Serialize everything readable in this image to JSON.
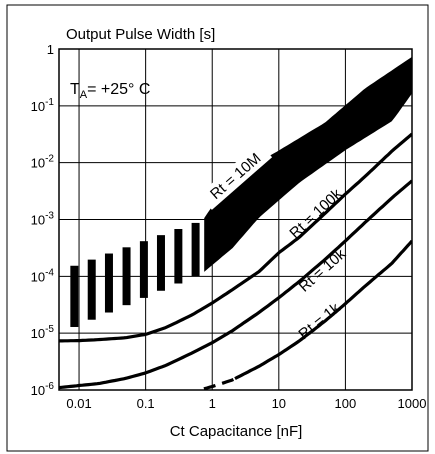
{
  "chart_data": {
    "type": "line",
    "title": "",
    "ylabel": "Output Pulse Width [s]",
    "xlabel": "Ct Capacitance [nF]",
    "x_scale": "log",
    "y_scale": "log",
    "xlim": [
      0.005,
      1000
    ],
    "ylim": [
      1e-06,
      1
    ],
    "x_ticks": [
      {
        "value": 0.01,
        "label": "0.01"
      },
      {
        "value": 0.1,
        "label": "0.1"
      },
      {
        "value": 1,
        "label": "1"
      },
      {
        "value": 10,
        "label": "10"
      },
      {
        "value": 100,
        "label": "100"
      },
      {
        "value": 1000,
        "label": "1000"
      }
    ],
    "y_ticks": [
      {
        "value": 1,
        "base": "1",
        "exp": ""
      },
      {
        "value": 0.1,
        "base": "10",
        "exp": "-1"
      },
      {
        "value": 0.01,
        "base": "10",
        "exp": "-2"
      },
      {
        "value": 0.001,
        "base": "10",
        "exp": "-3"
      },
      {
        "value": 0.0001,
        "base": "10",
        "exp": "-4"
      },
      {
        "value": 1e-05,
        "base": "10",
        "exp": "-5"
      },
      {
        "value": 1e-06,
        "base": "10",
        "exp": "-6"
      }
    ],
    "condition": {
      "prefix": "T",
      "subscript": "A",
      "text": "= +25° C"
    },
    "grid": true,
    "series": [
      {
        "name": "Rt = 10M",
        "style": "band",
        "upper": [
          [
            0.77,
            0.00105
          ],
          [
            2,
            0.0055
          ],
          [
            10,
            0.016
          ],
          [
            50,
            0.05
          ],
          [
            200,
            0.2
          ],
          [
            1000,
            0.71
          ]
        ],
        "lower": [
          [
            0.77,
            0.000125
          ],
          [
            2,
            0.00032
          ],
          [
            5,
            0.0011
          ],
          [
            20,
            0.0045
          ],
          [
            100,
            0.017
          ],
          [
            500,
            0.055
          ],
          [
            1000,
            0.17
          ]
        ],
        "label_at": [
          2.5,
          0.005
        ]
      },
      {
        "name": "",
        "style": "hatched",
        "upper": [
          [
            0.007,
            0.00015
          ],
          [
            0.77,
            0.00105
          ]
        ],
        "lower": [
          [
            0.007,
            1.25e-05
          ],
          [
            0.77,
            0.000125
          ]
        ],
        "bar_x": [
          0.0074,
          0.0135,
          0.0245,
          0.045,
          0.082,
          0.148,
          0.27,
          0.49
        ]
      },
      {
        "name": "Rt = 100k",
        "style": "line",
        "points": [
          [
            0.005,
            7.3e-06
          ],
          [
            0.01,
            7.4e-06
          ],
          [
            0.02,
            7.7e-06
          ],
          [
            0.05,
            8.3e-06
          ],
          [
            0.1,
            9.5e-06
          ],
          [
            0.2,
            1.25e-05
          ],
          [
            0.5,
            2.1e-05
          ],
          [
            1,
            3.4e-05
          ],
          [
            2,
            5.8e-05
          ],
          [
            5,
            0.00012
          ],
          [
            10,
            0.00026
          ],
          [
            20,
            0.00048
          ],
          [
            50,
            0.0013
          ],
          [
            100,
            0.0028
          ],
          [
            200,
            0.0058
          ],
          [
            500,
            0.016
          ],
          [
            1000,
            0.032
          ]
        ],
        "label_at": [
          40,
          0.0011
        ]
      },
      {
        "name": "Rt = 10k",
        "style": "line",
        "points": [
          [
            0.005,
            1.1e-06
          ],
          [
            0.01,
            1.2e-06
          ],
          [
            0.02,
            1.3e-06
          ],
          [
            0.05,
            1.6e-06
          ],
          [
            0.1,
            2e-06
          ],
          [
            0.2,
            2.7e-06
          ],
          [
            0.5,
            4.5e-06
          ],
          [
            1,
            6.8e-06
          ],
          [
            2,
            1.1e-05
          ],
          [
            5,
            2.3e-05
          ],
          [
            10,
            4.2e-05
          ],
          [
            20,
            8e-05
          ],
          [
            50,
            0.0002
          ],
          [
            100,
            0.00042
          ],
          [
            200,
            0.0009
          ],
          [
            500,
            0.0024
          ],
          [
            1000,
            0.0048
          ]
        ],
        "label_at": [
          50,
          0.00011
        ]
      },
      {
        "name": "Rt = 1k",
        "style": "line",
        "points": [
          [
            0.75,
            1.05e-06
          ],
          [
            1,
            1.15e-06
          ],
          [
            2,
            1.5e-06
          ],
          [
            5,
            2.6e-06
          ],
          [
            10,
            4.2e-06
          ],
          [
            20,
            7.2e-06
          ],
          [
            50,
            1.65e-05
          ],
          [
            100,
            3.3e-05
          ],
          [
            200,
            6.8e-05
          ],
          [
            500,
            0.00017
          ],
          [
            1000,
            0.00042
          ]
        ],
        "dashed_until": 2.2,
        "label_at": [
          45,
          1.4e-05
        ]
      }
    ]
  }
}
